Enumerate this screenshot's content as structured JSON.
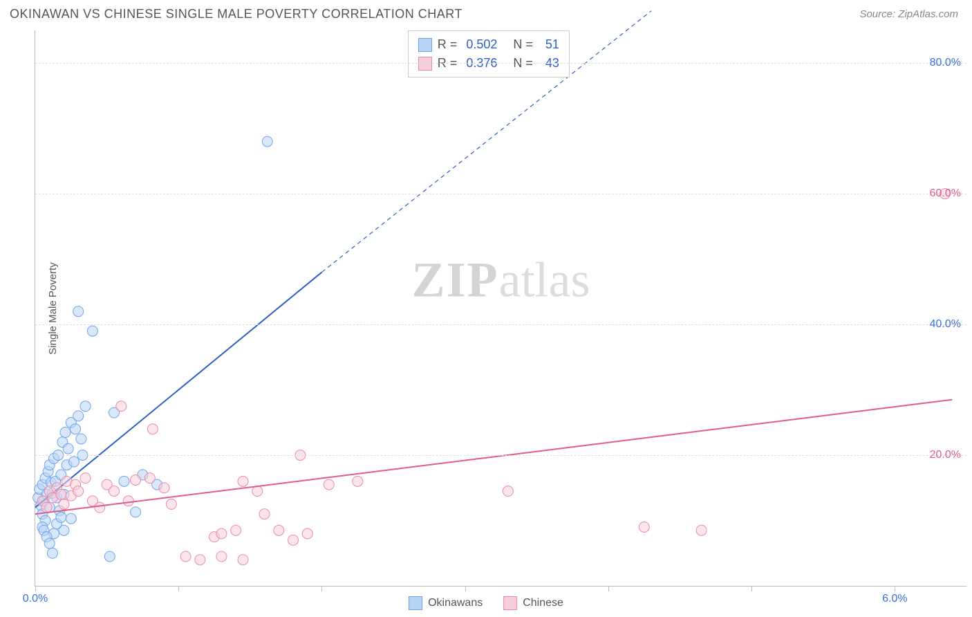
{
  "header": {
    "title": "OKINAWAN VS CHINESE SINGLE MALE POVERTY CORRELATION CHART",
    "source": "Source: ZipAtlas.com"
  },
  "chart": {
    "type": "scatter",
    "ylabel": "Single Male Poverty",
    "xlim": [
      0.0,
      6.5
    ],
    "ylim": [
      0.0,
      85.0
    ],
    "x_ticks": [
      0.0,
      1.0,
      2.0,
      3.0,
      4.0,
      5.0,
      6.0
    ],
    "x_tick_labels": {
      "start": "0.0%",
      "end": "6.0%"
    },
    "x_tick_color": "#3b6fd8",
    "y_gridlines": [
      20.0,
      40.0,
      60.0,
      80.0
    ],
    "y_tick_labels": [
      "20.0%",
      "40.0%",
      "60.0%",
      "80.0%"
    ],
    "y_tick_colors": [
      "#e05a8a",
      "#3b6fd8",
      "#e05a8a",
      "#3b6fd8"
    ],
    "grid_color": "#dddddd",
    "background_color": "#ffffff",
    "marker_radius": 7.5,
    "marker_opacity": 0.55,
    "line_width": 2.0,
    "series": [
      {
        "name": "Okinawans",
        "color_fill": "#b8d4f5",
        "color_stroke": "#6ea3e8",
        "line_color": "#2e5fc4",
        "stats": {
          "R": "0.502",
          "N": "51"
        },
        "trend": {
          "x1": 0.0,
          "y1": 12.0,
          "x2": 2.0,
          "y2": 48.0,
          "dash_x2": 4.3,
          "dash_y2": 88.0
        },
        "points": [
          [
            0.02,
            13.5
          ],
          [
            0.03,
            14.8
          ],
          [
            0.04,
            12.3
          ],
          [
            0.05,
            11.0
          ],
          [
            0.05,
            15.5
          ],
          [
            0.06,
            13.0
          ],
          [
            0.07,
            16.5
          ],
          [
            0.07,
            10.0
          ],
          [
            0.08,
            14.0
          ],
          [
            0.09,
            17.5
          ],
          [
            0.1,
            12.0
          ],
          [
            0.1,
            18.5
          ],
          [
            0.11,
            15.8
          ],
          [
            0.12,
            14.2
          ],
          [
            0.13,
            8.0
          ],
          [
            0.13,
            19.5
          ],
          [
            0.14,
            16.0
          ],
          [
            0.15,
            13.5
          ],
          [
            0.16,
            20.0
          ],
          [
            0.17,
            11.5
          ],
          [
            0.18,
            17.0
          ],
          [
            0.19,
            22.0
          ],
          [
            0.2,
            14.0
          ],
          [
            0.21,
            23.5
          ],
          [
            0.22,
            18.5
          ],
          [
            0.23,
            21.0
          ],
          [
            0.25,
            25.0
          ],
          [
            0.27,
            19.0
          ],
          [
            0.28,
            24.0
          ],
          [
            0.3,
            26.0
          ],
          [
            0.32,
            22.5
          ],
          [
            0.33,
            20.0
          ],
          [
            0.35,
            27.5
          ],
          [
            0.05,
            9.0
          ],
          [
            0.06,
            8.5
          ],
          [
            0.08,
            7.5
          ],
          [
            0.1,
            6.5
          ],
          [
            0.15,
            9.5
          ],
          [
            0.18,
            10.5
          ],
          [
            0.12,
            5.0
          ],
          [
            0.3,
            42.0
          ],
          [
            0.4,
            39.0
          ],
          [
            0.7,
            11.3
          ],
          [
            0.75,
            17.0
          ],
          [
            0.52,
            4.5
          ],
          [
            0.62,
            16.0
          ],
          [
            0.85,
            15.5
          ],
          [
            0.55,
            26.5
          ],
          [
            0.25,
            10.3
          ],
          [
            0.2,
            8.5
          ],
          [
            1.62,
            68.0
          ]
        ]
      },
      {
        "name": "Chinese",
        "color_fill": "#f7cdd9",
        "color_stroke": "#e98aab",
        "line_color": "#e05a8a",
        "stats": {
          "R": "0.376",
          "N": "43"
        },
        "trend": {
          "x1": 0.0,
          "y1": 11.0,
          "x2": 6.4,
          "y2": 28.5
        },
        "points": [
          [
            0.05,
            13.0
          ],
          [
            0.08,
            12.0
          ],
          [
            0.1,
            14.5
          ],
          [
            0.12,
            13.5
          ],
          [
            0.15,
            15.0
          ],
          [
            0.18,
            14.0
          ],
          [
            0.2,
            12.5
          ],
          [
            0.22,
            16.0
          ],
          [
            0.25,
            13.8
          ],
          [
            0.28,
            15.5
          ],
          [
            0.3,
            14.5
          ],
          [
            0.35,
            16.5
          ],
          [
            0.4,
            13.0
          ],
          [
            0.45,
            12.0
          ],
          [
            0.5,
            15.5
          ],
          [
            0.55,
            14.5
          ],
          [
            0.6,
            27.5
          ],
          [
            0.65,
            13.0
          ],
          [
            0.7,
            16.2
          ],
          [
            0.82,
            24.0
          ],
          [
            0.8,
            16.5
          ],
          [
            0.9,
            15.0
          ],
          [
            0.95,
            12.5
          ],
          [
            1.05,
            4.5
          ],
          [
            1.15,
            4.0
          ],
          [
            1.25,
            7.5
          ],
          [
            1.3,
            8.0
          ],
          [
            1.3,
            4.5
          ],
          [
            1.4,
            8.5
          ],
          [
            1.45,
            4.0
          ],
          [
            1.45,
            16.0
          ],
          [
            1.55,
            14.5
          ],
          [
            1.6,
            11.0
          ],
          [
            1.8,
            7.0
          ],
          [
            1.85,
            20.0
          ],
          [
            1.7,
            8.5
          ],
          [
            1.9,
            8.0
          ],
          [
            2.05,
            15.5
          ],
          [
            2.25,
            16.0
          ],
          [
            3.3,
            14.5
          ],
          [
            4.25,
            9.0
          ],
          [
            4.65,
            8.5
          ],
          [
            6.35,
            60.0
          ]
        ]
      }
    ],
    "watermark": {
      "zip": "ZIP",
      "atlas": "atlas"
    },
    "legend": {
      "items": [
        "Okinawans",
        "Chinese"
      ]
    }
  }
}
